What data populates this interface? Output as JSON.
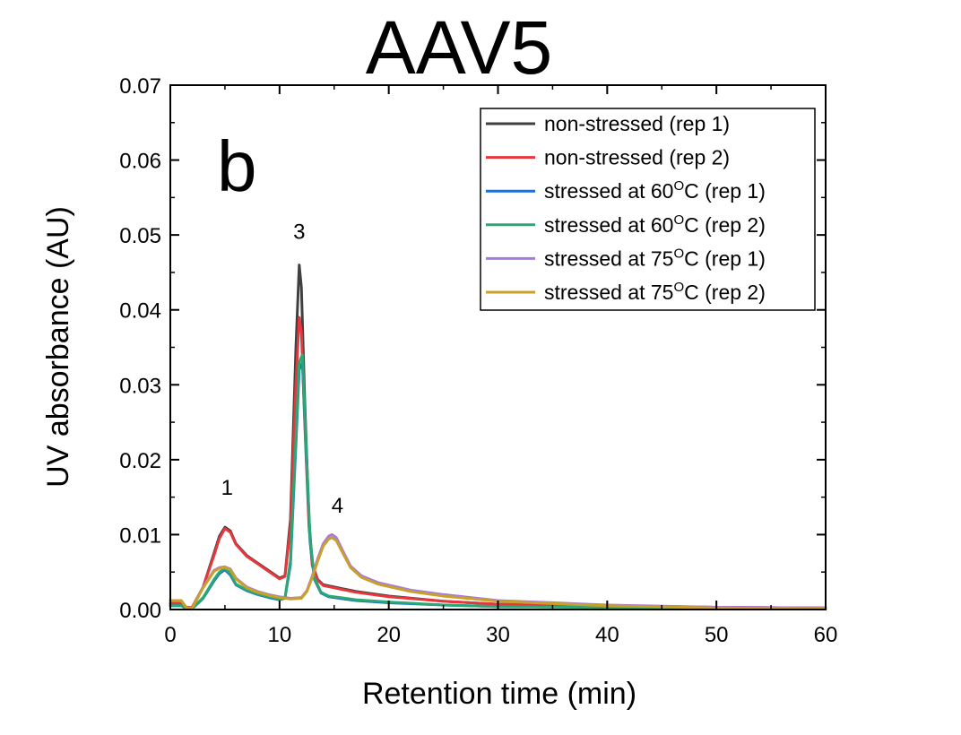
{
  "chart_data": {
    "type": "line",
    "title": "AAV5",
    "panel_label": "b",
    "xlabel": "Retention time (min)",
    "ylabel": "UV absorbance (AU)",
    "xlim": [
      0,
      60
    ],
    "ylim": [
      0,
      0.07
    ],
    "xticks": [
      0,
      10,
      20,
      30,
      40,
      50,
      60
    ],
    "xtick_labels": [
      "0",
      "10",
      "20",
      "30",
      "40",
      "50",
      "60"
    ],
    "yticks": [
      0,
      0.01,
      0.02,
      0.03,
      0.04,
      0.05,
      0.06,
      0.07
    ],
    "ytick_labels": [
      "0.00",
      "0.01",
      "0.02",
      "0.03",
      "0.04",
      "0.05",
      "0.06",
      "0.07"
    ],
    "grid": false,
    "legend_position": "top-right",
    "annotations": [
      {
        "text": "1",
        "x": 5.2,
        "y": 0.0153
      },
      {
        "text": "3",
        "x": 11.8,
        "y": 0.0495
      },
      {
        "text": "4",
        "x": 15.3,
        "y": 0.0129
      }
    ],
    "series": [
      {
        "name": "non-stressed (rep 1)",
        "label": "non-stressed (rep 1)",
        "color": "#404040",
        "x": [
          0,
          1,
          1.5,
          2,
          3,
          4,
          4.5,
          5,
          5.5,
          6,
          7,
          8,
          9,
          10,
          10.5,
          11,
          11.5,
          11.8,
          12,
          12.3,
          12.7,
          13,
          13.5,
          14,
          15,
          16,
          17,
          20,
          25,
          30,
          40,
          50,
          60
        ],
        "y": [
          0.0008,
          0.0008,
          0.0003,
          0.0003,
          0.003,
          0.0075,
          0.0098,
          0.011,
          0.0105,
          0.0088,
          0.0072,
          0.0062,
          0.0052,
          0.0042,
          0.0045,
          0.012,
          0.035,
          0.046,
          0.043,
          0.028,
          0.012,
          0.006,
          0.004,
          0.0033,
          0.003,
          0.0027,
          0.0024,
          0.0018,
          0.0011,
          0.0007,
          0.0005,
          0.0003,
          0.0002
        ]
      },
      {
        "name": "non-stressed (rep 2)",
        "label": "non-stressed (rep 2)",
        "color": "#e8363d",
        "x": [
          0,
          1,
          1.5,
          2,
          3,
          4,
          4.5,
          5,
          5.5,
          6,
          7,
          8,
          9,
          10,
          10.5,
          11,
          11.5,
          11.8,
          12,
          12.3,
          12.7,
          13,
          13.5,
          14,
          15,
          16,
          17,
          20,
          25,
          30,
          40,
          50,
          60
        ],
        "y": [
          0.0008,
          0.0008,
          0.0003,
          0.0003,
          0.003,
          0.0072,
          0.0095,
          0.0108,
          0.0103,
          0.0087,
          0.0071,
          0.0061,
          0.0051,
          0.0041,
          0.0044,
          0.011,
          0.03,
          0.039,
          0.037,
          0.025,
          0.011,
          0.0058,
          0.0039,
          0.0032,
          0.0029,
          0.0026,
          0.0023,
          0.0017,
          0.0011,
          0.0007,
          0.0005,
          0.0003,
          0.0002
        ]
      },
      {
        "name": "stressed at 60°C (rep 1)",
        "label": "stressed at 60",
        "sup": "O",
        "suffix": "C (rep 1)",
        "color": "#1f6fd1",
        "x": [
          0,
          1,
          1.5,
          2,
          3,
          4,
          4.5,
          5,
          5.5,
          6,
          7,
          8,
          9,
          10,
          10.5,
          11,
          11.5,
          11.8,
          12.1,
          12.4,
          12.8,
          13.2,
          13.8,
          14.5,
          15.5,
          17,
          20,
          25,
          30,
          40,
          50,
          60
        ],
        "y": [
          0.0005,
          0.0005,
          0.0001,
          0.0001,
          0.0015,
          0.0038,
          0.0048,
          0.0053,
          0.0046,
          0.0033,
          0.0025,
          0.002,
          0.0016,
          0.0013,
          0.0015,
          0.006,
          0.022,
          0.032,
          0.033,
          0.022,
          0.009,
          0.004,
          0.0022,
          0.0017,
          0.0015,
          0.0012,
          0.0009,
          0.0006,
          0.0004,
          0.0003,
          0.0002,
          0.0001
        ]
      },
      {
        "name": "stressed at 60°C (rep 2)",
        "label": "stressed at 60",
        "sup": "O",
        "suffix": "C (rep 2)",
        "color": "#2aa874",
        "x": [
          0,
          1,
          1.5,
          2,
          3,
          4,
          4.5,
          5,
          5.5,
          6,
          7,
          8,
          9,
          10,
          10.5,
          11,
          11.5,
          11.8,
          12.1,
          12.4,
          12.8,
          13.2,
          13.8,
          14.5,
          15.5,
          17,
          20,
          25,
          30,
          40,
          50,
          60
        ],
        "y": [
          0.0005,
          0.0005,
          0.0001,
          0.0001,
          0.0016,
          0.004,
          0.005,
          0.0055,
          0.0048,
          0.0034,
          0.0026,
          0.0021,
          0.0017,
          0.0014,
          0.0016,
          0.0065,
          0.023,
          0.033,
          0.034,
          0.023,
          0.0095,
          0.0042,
          0.0023,
          0.0018,
          0.0016,
          0.0013,
          0.001,
          0.0006,
          0.0004,
          0.0003,
          0.0002,
          0.0001
        ]
      },
      {
        "name": "stressed at 75°C (rep 1)",
        "label": "stressed at 75",
        "sup": "O",
        "suffix": "C (rep 1)",
        "color": "#a57be0",
        "x": [
          0,
          1,
          1.5,
          2,
          3,
          4,
          4.5,
          5,
          5.5,
          6,
          7,
          8,
          9,
          10,
          11,
          12,
          12.5,
          13,
          13.5,
          14,
          14.5,
          14.8,
          15.2,
          15.8,
          16.5,
          17.5,
          19,
          22,
          25,
          30,
          40,
          50,
          60
        ],
        "y": [
          0.0012,
          0.0012,
          0.0002,
          0.0002,
          0.003,
          0.0052,
          0.0056,
          0.0057,
          0.0054,
          0.0042,
          0.003,
          0.0024,
          0.002,
          0.0017,
          0.0015,
          0.0016,
          0.0025,
          0.0045,
          0.0068,
          0.0088,
          0.0098,
          0.01,
          0.0096,
          0.0078,
          0.0058,
          0.0045,
          0.0036,
          0.0026,
          0.002,
          0.0012,
          0.0006,
          0.0003,
          0.0002
        ]
      },
      {
        "name": "stressed at 75°C (rep 2)",
        "label": "stressed at 75",
        "sup": "O",
        "suffix": "C (rep 2)",
        "color": "#c9a02a",
        "x": [
          0,
          1,
          1.5,
          2,
          3,
          4,
          4.5,
          5,
          5.5,
          6,
          7,
          8,
          9,
          10,
          11,
          12,
          12.5,
          13,
          13.5,
          14,
          14.5,
          14.8,
          15.2,
          15.8,
          16.5,
          17.5,
          19,
          22,
          25,
          30,
          40,
          50,
          60
        ],
        "y": [
          0.0012,
          0.0012,
          0.0002,
          0.0002,
          0.0029,
          0.0051,
          0.0055,
          0.0056,
          0.0053,
          0.0041,
          0.0029,
          0.0023,
          0.0019,
          0.0016,
          0.0014,
          0.0015,
          0.0024,
          0.0043,
          0.0065,
          0.0085,
          0.0094,
          0.0096,
          0.0092,
          0.0075,
          0.0056,
          0.0043,
          0.0034,
          0.0024,
          0.0018,
          0.0011,
          0.0005,
          0.0002,
          0.0001
        ]
      }
    ]
  }
}
